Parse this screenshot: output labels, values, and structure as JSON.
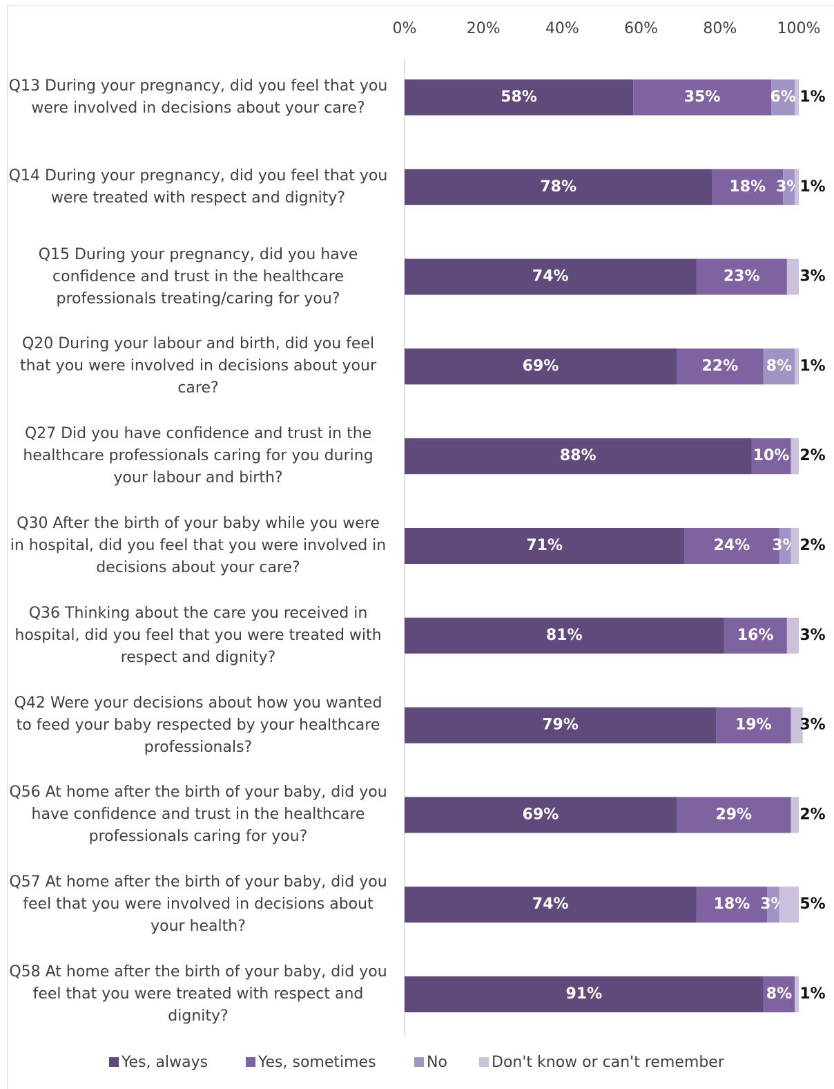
{
  "chart_data": {
    "type": "bar",
    "orientation": "horizontal",
    "stacked": true,
    "categories": [
      "Q13 During your pregnancy, did you feel that you were involved in decisions about your care?",
      "Q14 During your pregnancy, did you feel that you were treated with respect and dignity?",
      "Q15 During your pregnancy, did you have confidence and trust in the healthcare professionals treating/caring for you?",
      "Q20 During your labour and birth, did you feel that you were involved in decisions about your care?",
      "Q27 Did you have confidence and trust in the healthcare professionals caring for you during your labour and birth?",
      "Q30 After the birth of your baby while you were in hospital, did you feel that you were involved in decisions about your care?",
      "Q36 Thinking about the care you received in hospital, did you feel that you were treated with respect and dignity?",
      "Q42 Were your decisions about how you wanted to feed your baby respected by your healthcare professionals?",
      "Q56 At home after the birth of your baby, did you have confidence and trust in the healthcare professionals caring for you?",
      "Q57 At home after the birth of your baby, did you feel that you were involved in decisions about your health?",
      "Q58 At home after the birth of your baby, did you feel that you were treated with respect and dignity?"
    ],
    "series": [
      {
        "name": "Yes, always",
        "color": "#604a7b",
        "values": [
          58,
          78,
          74,
          69,
          88,
          71,
          81,
          79,
          69,
          74,
          91
        ],
        "value_labels": [
          "58%",
          "78%",
          "74%",
          "69%",
          "88%",
          "71%",
          "81%",
          "79%",
          "69%",
          "74%",
          "91%"
        ]
      },
      {
        "name": "Yes, sometimes",
        "color": "#7f63a1",
        "values": [
          35,
          18,
          23,
          22,
          10,
          24,
          16,
          19,
          29,
          18,
          8
        ],
        "value_labels": [
          "35%",
          "18%",
          "23%",
          "22%",
          "10%",
          "24%",
          "16%",
          "19%",
          "29%",
          "18%",
          "8%"
        ]
      },
      {
        "name": "No",
        "color": "#a193c3",
        "values": [
          6,
          3,
          null,
          8,
          null,
          3,
          null,
          null,
          null,
          3,
          null
        ],
        "value_labels": [
          "6%",
          "3%",
          null,
          "8%",
          null,
          "3%",
          null,
          null,
          null,
          "3%",
          null
        ]
      },
      {
        "name": "Don't know or can't remember",
        "color": "#ccc1da",
        "values": [
          1,
          1,
          3,
          1,
          2,
          2,
          3,
          3,
          2,
          5,
          1
        ],
        "value_labels": [
          "1%",
          "1%",
          "3%",
          "1%",
          "2%",
          "2%",
          "3%",
          "3%",
          "2%",
          "5%",
          "1%"
        ]
      }
    ],
    "xlim": [
      0,
      100
    ],
    "xticks": [
      {
        "value": 0,
        "label": "0%"
      },
      {
        "value": 20,
        "label": "20%"
      },
      {
        "value": 40,
        "label": "40%"
      },
      {
        "value": 60,
        "label": "60%"
      },
      {
        "value": 80,
        "label": "80%"
      },
      {
        "value": 100,
        "label": "100%"
      }
    ],
    "legend": "bottom"
  }
}
